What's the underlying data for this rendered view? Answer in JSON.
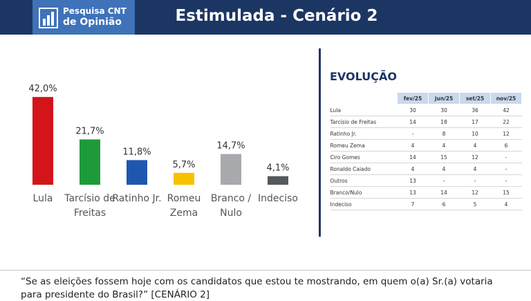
{
  "header": {
    "logo": [
      "Pesquisa CNT",
      "de Opinião"
    ],
    "title": "Estimulada - Cenário 2"
  },
  "chart_data": {
    "type": "bar",
    "categories": [
      "Lula",
      "Tarcísio de Freitas",
      "Ratinho Jr.",
      "Romeu Zema",
      "Branco / Nulo",
      "Indeciso"
    ],
    "values": [
      42.0,
      21.7,
      11.8,
      5.7,
      14.7,
      4.1
    ],
    "value_labels": [
      "42,0%",
      "21,7%",
      "11,8%",
      "5,7%",
      "14,7%",
      "4,1%"
    ],
    "colors": [
      "#d3141b",
      "#1f9a3b",
      "#1f57b0",
      "#f6c200",
      "#a7a9ac",
      "#54595d"
    ]
  },
  "table": {
    "title": "EVOLUÇÃO",
    "columns": [
      "fev/25",
      "jun/25",
      "set/25",
      "nov/25"
    ],
    "rows": [
      [
        "Lula",
        30,
        30,
        36,
        42
      ],
      [
        "Tarcísio de Freitas",
        14,
        18,
        17,
        22
      ],
      [
        "Ratinho Jr.",
        "-",
        8,
        10,
        12
      ],
      [
        "Romeu Zema",
        4,
        4,
        4,
        6
      ],
      [
        "Ciro Gomes",
        14,
        15,
        12,
        "-"
      ],
      [
        "Ronaldo Caiado",
        4,
        4,
        4,
        "-"
      ],
      [
        "Outros",
        13,
        "-",
        "-",
        "-"
      ],
      [
        "Branco/Nulo",
        13,
        14,
        12,
        15
      ],
      [
        "Indeciso",
        7,
        6,
        5,
        4
      ]
    ]
  },
  "footer": {
    "question": "“Se as eleições fossem hoje com os candidatos que estou te mostrando, em quem o(a) Sr.(a) votaria para presidente do Brasil?” [CENÁRIO 2]"
  }
}
